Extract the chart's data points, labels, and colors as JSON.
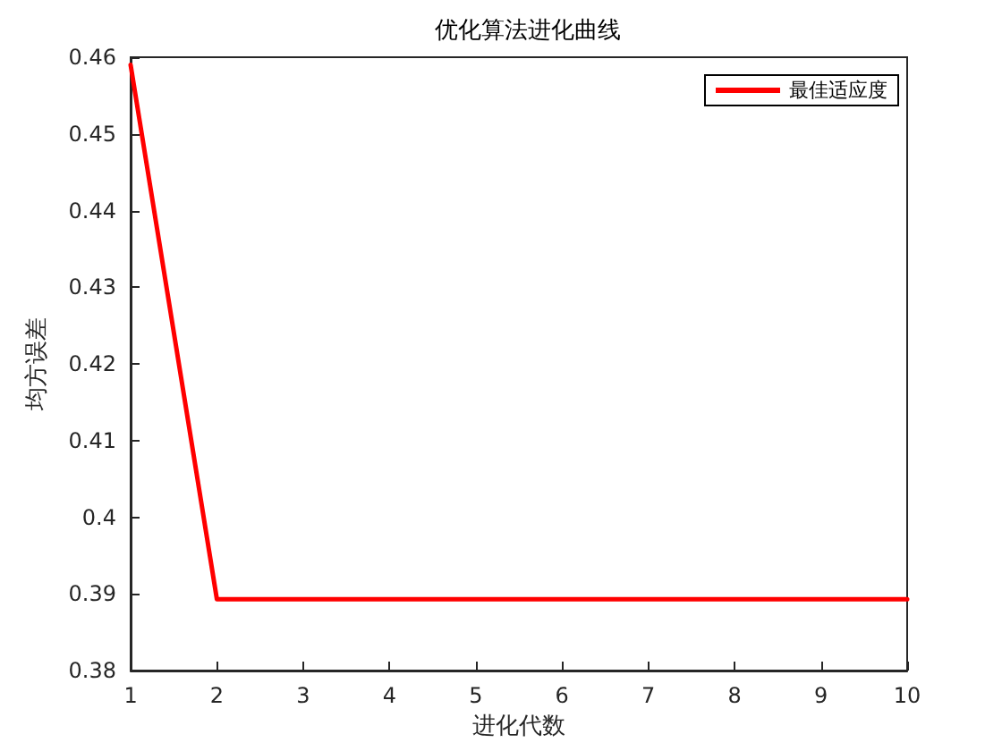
{
  "chart_data": {
    "type": "line",
    "title": "优化算法进化曲线",
    "xlabel": "进化代数",
    "ylabel": "均方误差",
    "x": [
      1,
      2,
      3,
      4,
      5,
      6,
      7,
      8,
      9,
      10
    ],
    "series": [
      {
        "name": "最佳适应度",
        "color": "#ff0000",
        "values": [
          0.459,
          0.3893,
          0.3893,
          0.3893,
          0.3893,
          0.3893,
          0.3893,
          0.3893,
          0.3893,
          0.3893
        ]
      }
    ],
    "xlim": [
      1,
      10
    ],
    "xticks": [
      1,
      2,
      3,
      4,
      5,
      6,
      7,
      8,
      9,
      10
    ],
    "ylim": [
      0.38,
      0.46
    ],
    "yticks": [
      0.38,
      0.39,
      0.4,
      0.41,
      0.42,
      0.43,
      0.44,
      0.45,
      0.46
    ],
    "grid": false,
    "legend": "top right",
    "marker": "none",
    "line_style": "solid"
  }
}
